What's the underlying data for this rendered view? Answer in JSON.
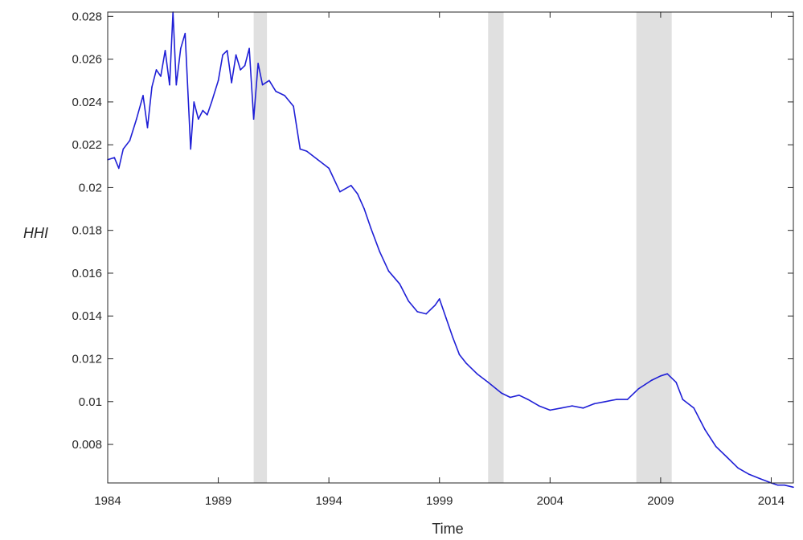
{
  "chart_data": {
    "type": "line",
    "title": "",
    "xlabel": "Time",
    "ylabel": "HHI",
    "xlim": [
      1984,
      2015
    ],
    "ylim": [
      0.0062,
      0.0282
    ],
    "x_ticks": [
      1984,
      1989,
      1994,
      1999,
      2004,
      2009,
      2014
    ],
    "x_tick_labels": [
      "1984",
      "1989",
      "1994",
      "1999",
      "2004",
      "2009",
      "2014"
    ],
    "y_ticks": [
      0.008,
      0.01,
      0.012,
      0.014,
      0.016,
      0.018,
      0.02,
      0.022,
      0.024,
      0.026,
      0.028
    ],
    "y_tick_labels": [
      "0.008",
      "0.01",
      "0.012",
      "0.014",
      "0.016",
      "0.018",
      "0.02",
      "0.022",
      "0.024",
      "0.026",
      "0.028"
    ],
    "grid": false,
    "legend": "none",
    "shaded_periods": [
      [
        1990.6,
        1991.2
      ],
      [
        2001.2,
        2001.9
      ],
      [
        2007.9,
        2009.5
      ]
    ],
    "colors": {
      "line": "#1f1fd6",
      "shade": "#e0e0e0",
      "axis": "#262626"
    },
    "series": [
      {
        "x": [
          1984.0,
          1984.3,
          1984.5,
          1984.7,
          1985.0,
          1985.3,
          1985.6,
          1985.8,
          1986.0,
          1986.2,
          1986.4,
          1986.6,
          1986.8,
          1986.95,
          1987.1,
          1987.3,
          1987.5,
          1987.75,
          1987.9,
          1988.1,
          1988.3,
          1988.5,
          1988.7,
          1989.0,
          1989.2,
          1989.4,
          1989.6,
          1989.8,
          1990.0,
          1990.2,
          1990.4,
          1990.6,
          1990.8,
          1991.0,
          1991.3,
          1991.6,
          1992.0,
          1992.4,
          1992.7,
          1993.0,
          1993.5,
          1994.0,
          1994.5,
          1995.0,
          1995.3,
          1995.6,
          1995.9,
          1996.3,
          1996.7,
          1997.2,
          1997.6,
          1998.0,
          1998.4,
          1998.8,
          1999.0,
          1999.3,
          1999.6,
          1999.9,
          2000.2,
          2000.7,
          2001.2,
          2001.8,
          2002.2,
          2002.6,
          2003.0,
          2003.5,
          2004.0,
          2004.5,
          2005.0,
          2005.5,
          2006.0,
          2006.5,
          2007.0,
          2007.5,
          2008.0,
          2008.3,
          2008.6,
          2009.0,
          2009.3,
          2009.7,
          2010.0,
          2010.5,
          2011.0,
          2011.5,
          2012.0,
          2012.5,
          2013.0,
          2013.5,
          2014.0,
          2014.3,
          2014.6,
          2015.0
        ],
        "y": [
          0.0213,
          0.0214,
          0.0209,
          0.0218,
          0.0222,
          0.0232,
          0.0243,
          0.0228,
          0.0247,
          0.0255,
          0.0252,
          0.0264,
          0.0248,
          0.0282,
          0.0248,
          0.0265,
          0.0272,
          0.0218,
          0.024,
          0.0232,
          0.0236,
          0.0234,
          0.024,
          0.025,
          0.0262,
          0.0264,
          0.0249,
          0.0262,
          0.0255,
          0.0257,
          0.0265,
          0.0232,
          0.0258,
          0.0248,
          0.025,
          0.0245,
          0.0243,
          0.0238,
          0.0218,
          0.0217,
          0.0213,
          0.0209,
          0.0198,
          0.0201,
          0.0197,
          0.019,
          0.0181,
          0.017,
          0.0161,
          0.0155,
          0.0147,
          0.0142,
          0.0141,
          0.0145,
          0.0148,
          0.0139,
          0.013,
          0.0122,
          0.0118,
          0.0113,
          0.0109,
          0.0104,
          0.0102,
          0.0103,
          0.0101,
          0.0098,
          0.0096,
          0.0097,
          0.0098,
          0.0097,
          0.0099,
          0.01,
          0.0101,
          0.0101,
          0.0106,
          0.0108,
          0.011,
          0.0112,
          0.0113,
          0.0109,
          0.0101,
          0.0097,
          0.0087,
          0.0079,
          0.0074,
          0.0069,
          0.0066,
          0.0064,
          0.0062,
          0.0061,
          0.0061,
          0.006
        ]
      }
    ]
  }
}
